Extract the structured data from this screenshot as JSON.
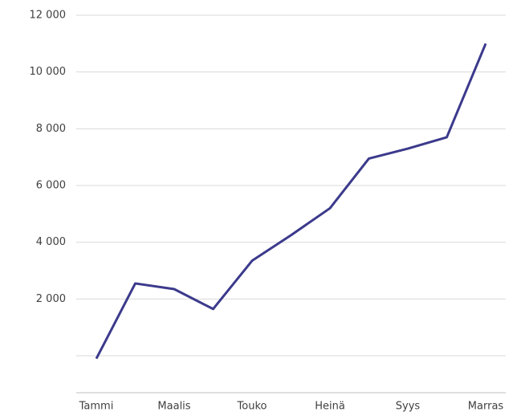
{
  "chart_data": {
    "type": "line",
    "categories": [
      "Tammi",
      null,
      "Maalis",
      null,
      "Touko",
      null,
      "Heinä",
      null,
      "Syys",
      null,
      "Marras"
    ],
    "series": [
      {
        "color": "#3b3a8c",
        "values": [
          -100,
          2550,
          2350,
          1650,
          3350,
          4250,
          5200,
          6950,
          7300,
          7700,
          11000
        ]
      }
    ],
    "ylim": [
      -1300,
      12000
    ],
    "yticks": [
      {
        "value": 0,
        "label": null
      },
      {
        "value": 2000,
        "label": "2 000"
      },
      {
        "value": 4000,
        "label": "4 000"
      },
      {
        "value": 6000,
        "label": "6 000"
      },
      {
        "value": 8000,
        "label": "8 000"
      },
      {
        "value": 10000,
        "label": "10 000"
      },
      {
        "value": 12000,
        "label": "12 000"
      }
    ],
    "grid": true
  }
}
